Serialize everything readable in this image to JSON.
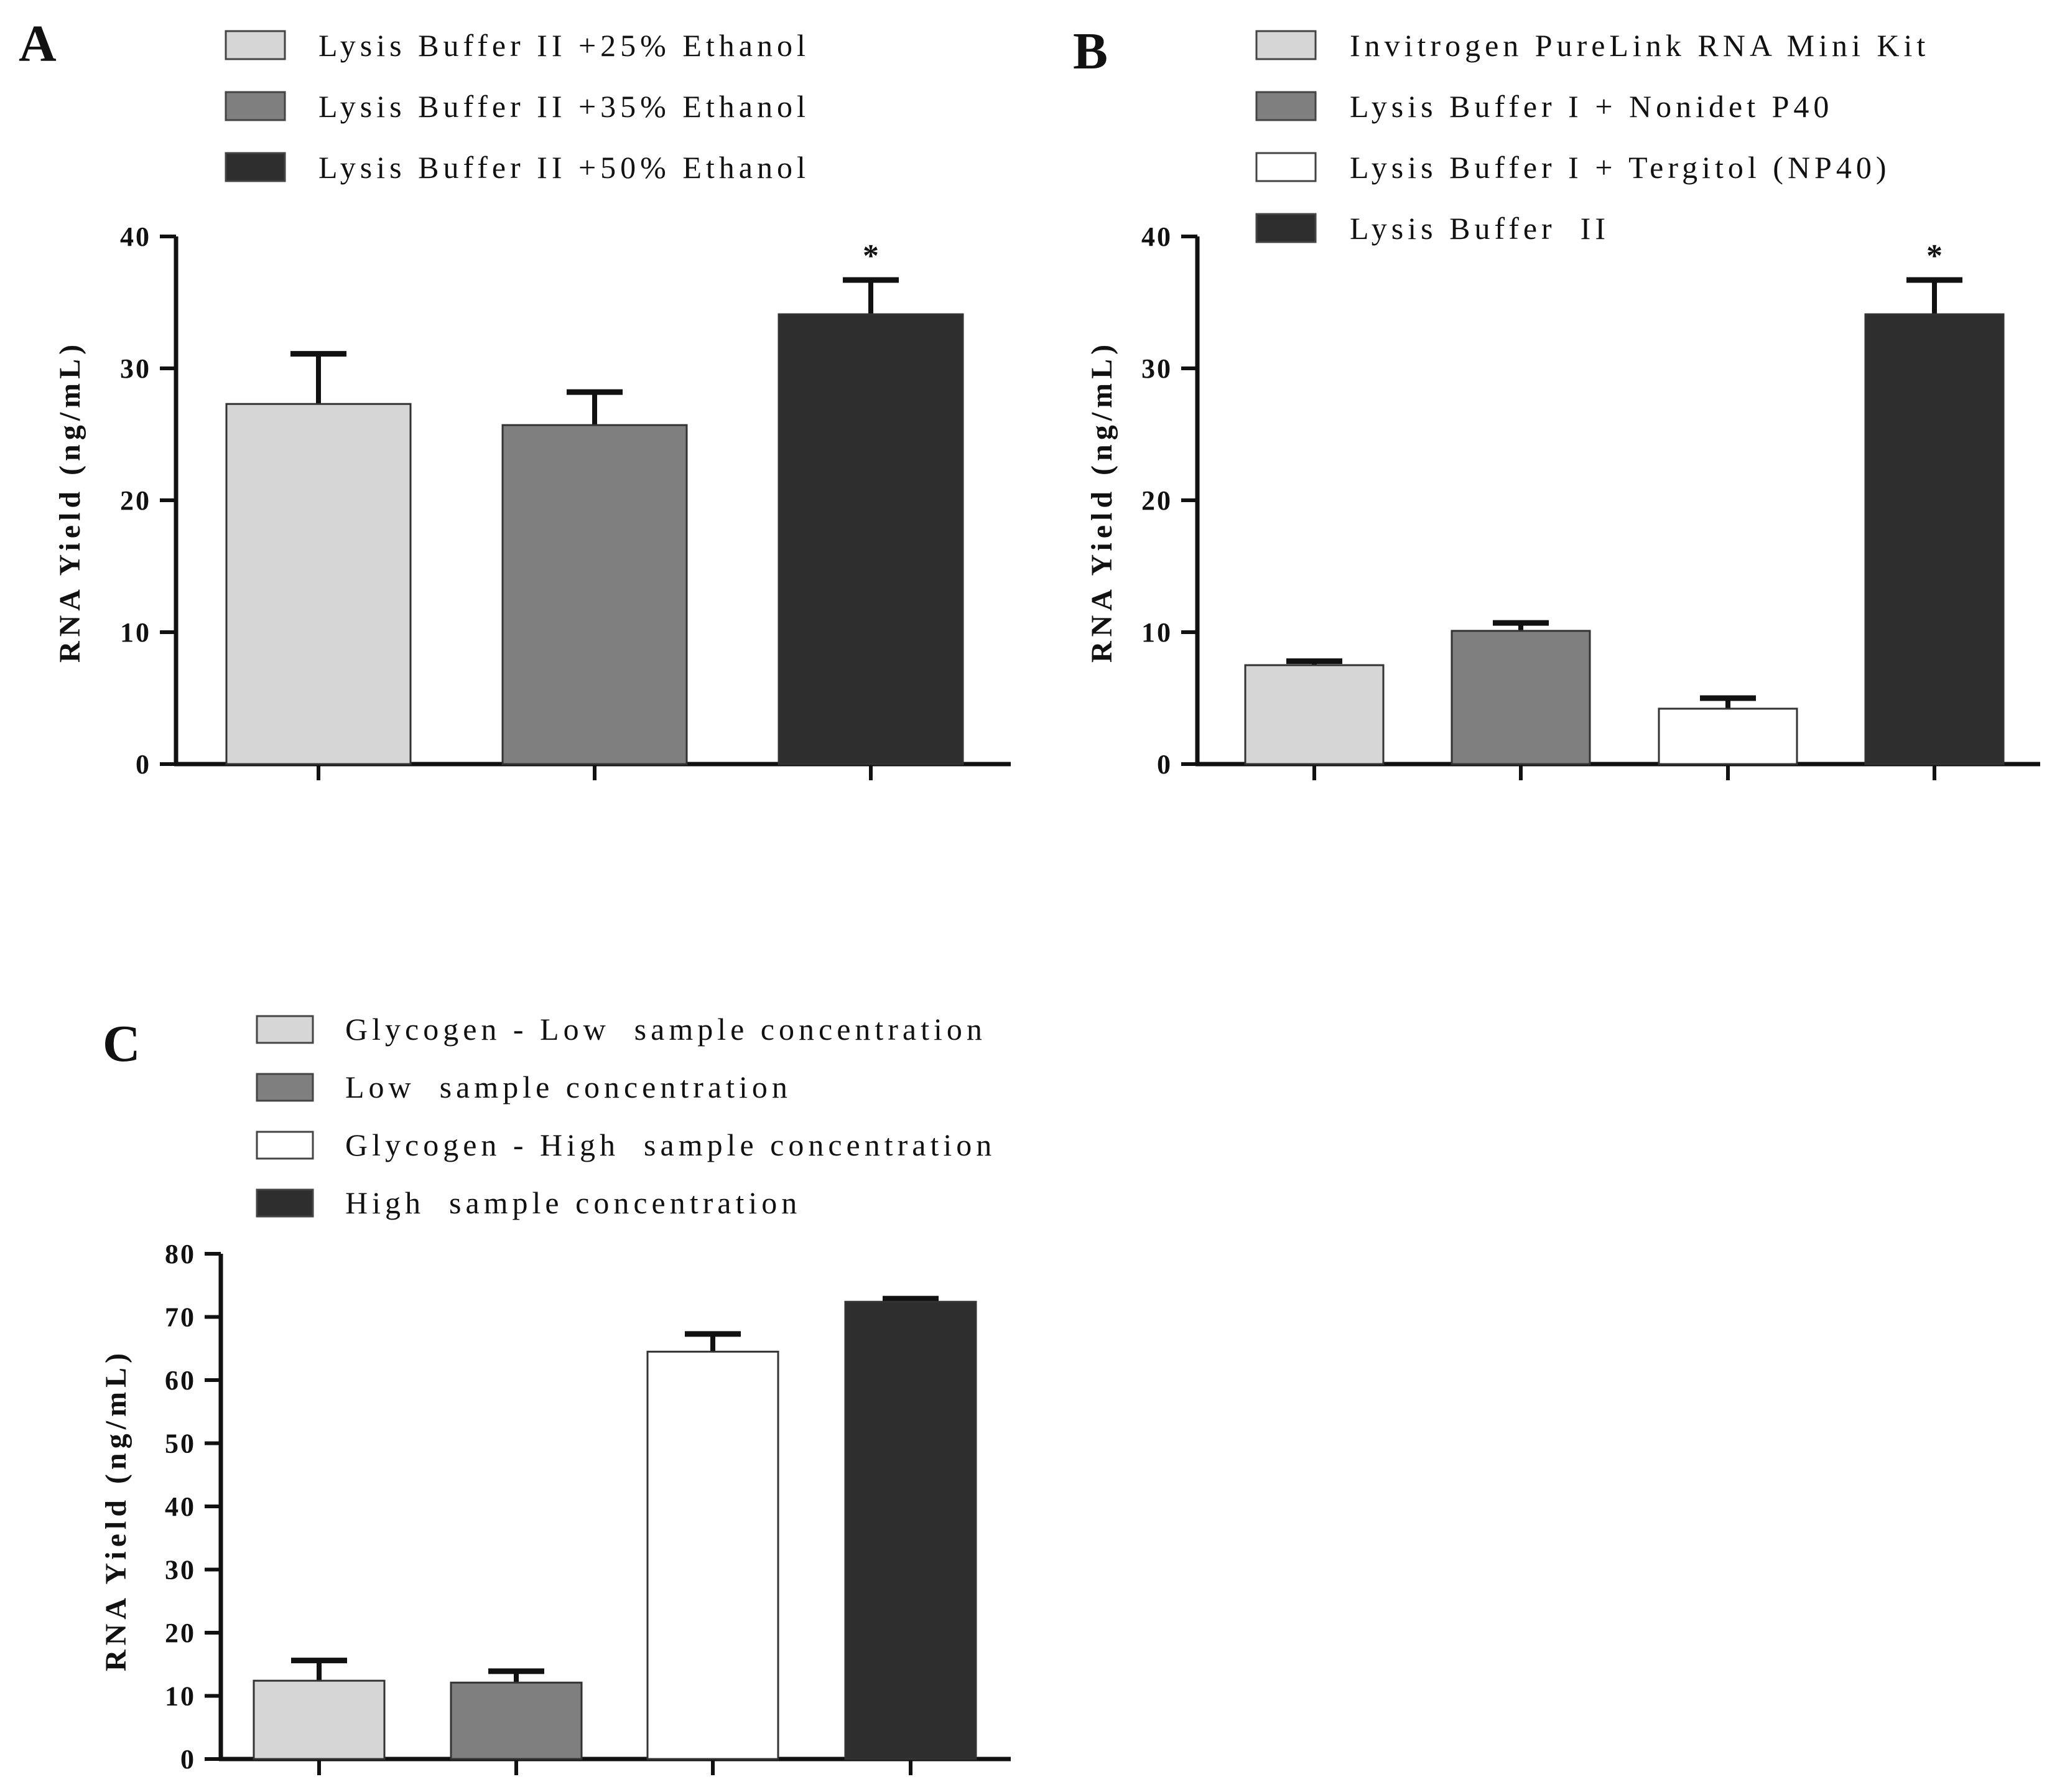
{
  "chart_data": [
    {
      "panel": "A",
      "type": "bar",
      "ylabel": "RNA Yield (ng/mL)",
      "ylim": [
        0,
        40
      ],
      "yticks": [
        "0",
        "10",
        "20",
        "30",
        "40"
      ],
      "categories": [
        "Lysis Buffer II +25% Ethanol",
        "Lysis Buffer II +35% Ethanol",
        "Lysis Buffer II +50% Ethanol"
      ],
      "values": [
        27.3,
        25.7,
        34.1
      ],
      "errors": [
        3.8,
        2.5,
        2.6
      ],
      "colors": [
        "#d6d6d6",
        "#7f7f7f",
        "#2e2e2e"
      ],
      "annotations": [
        "",
        "",
        "*"
      ],
      "legend": "top-left"
    },
    {
      "panel": "B",
      "type": "bar",
      "ylabel": "RNA Yield (ng/mL)",
      "ylim": [
        0,
        40
      ],
      "yticks": [
        "0",
        "10",
        "20",
        "30",
        "40"
      ],
      "categories": [
        "Invitrogen PureLink RNA Mini Kit",
        "Lysis Buffer I + Nonidet P40",
        "Lysis Buffer I + Tergitol (NP40)",
        "Lysis Buffer  II"
      ],
      "values": [
        7.5,
        10.1,
        4.2,
        34.1
      ],
      "errors": [
        0.3,
        0.6,
        0.8,
        2.6
      ],
      "colors": [
        "#d6d6d6",
        "#7f7f7f",
        "#ffffff",
        "#2e2e2e"
      ],
      "annotations": [
        "",
        "",
        "",
        "*"
      ],
      "legend": "top"
    },
    {
      "panel": "C",
      "type": "bar",
      "ylabel": "RNA Yield (ng/mL)",
      "ylim": [
        0,
        80
      ],
      "yticks": [
        "0",
        "10",
        "20",
        "30",
        "40",
        "50",
        "60",
        "70",
        "80"
      ],
      "categories": [
        "Glycogen - Low  sample concentration",
        "Low  sample concentration",
        "Glycogen - High  sample concentration",
        "High  sample concentration"
      ],
      "values": [
        12.4,
        12.1,
        64.5,
        72.4
      ],
      "errors": [
        3.2,
        1.8,
        2.8,
        0.5
      ],
      "colors": [
        "#d6d6d6",
        "#7f7f7f",
        "#ffffff",
        "#2e2e2e"
      ],
      "annotations": [
        "",
        "",
        "",
        ""
      ],
      "legend": "top-left"
    }
  ]
}
